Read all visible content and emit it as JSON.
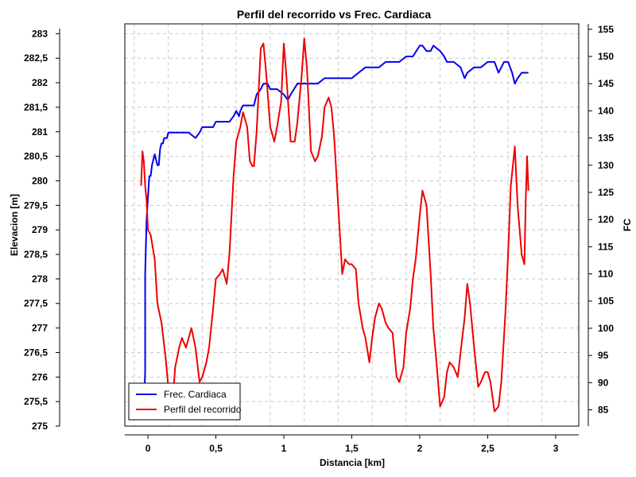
{
  "chart_data": {
    "type": "line",
    "title": "Perfil del recorrido vs Frec. Cardiaca",
    "xlabel": "Distancia [km]",
    "ylabel_left": "Elevacion [m]",
    "ylabel_right": "FC",
    "xlim": [
      -0.17,
      3.17
    ],
    "ylim_left": [
      275,
      283.2
    ],
    "ylim_right": [
      82,
      156
    ],
    "x_ticks": [
      "0",
      "0,5",
      "1",
      "1,5",
      "2",
      "2,5",
      "3"
    ],
    "x_tick_values": [
      0,
      0.5,
      1,
      1.5,
      2,
      2.5,
      3
    ],
    "y_left_ticks": [
      "275",
      "275,5",
      "276",
      "276,5",
      "277",
      "277,5",
      "278",
      "278,5",
      "279",
      "279,5",
      "280",
      "280,5",
      "281",
      "281,5",
      "282",
      "282,5",
      "283"
    ],
    "y_left_tick_values": [
      275,
      275.5,
      276,
      276.5,
      277,
      277.5,
      278,
      278.5,
      279,
      279.5,
      280,
      280.5,
      281,
      281.5,
      282,
      282.5,
      283
    ],
    "y_right_ticks": [
      "85",
      "90",
      "95",
      "100",
      "105",
      "110",
      "115",
      "120",
      "125",
      "130",
      "135",
      "140",
      "145",
      "150",
      "155"
    ],
    "y_right_tick_values": [
      85,
      90,
      95,
      100,
      105,
      110,
      115,
      120,
      125,
      130,
      135,
      140,
      145,
      150,
      155
    ],
    "grid": true,
    "legend_position": "bottom-left",
    "series": [
      {
        "name": "Frec. Cardiaca",
        "axis": "right",
        "color": "#0000ee",
        "x": [
          -0.03,
          -0.02,
          -0.02,
          -0.01,
          0.0,
          0.01,
          0.02,
          0.03,
          0.04,
          0.05,
          0.06,
          0.07,
          0.08,
          0.09,
          0.1,
          0.11,
          0.12,
          0.13,
          0.14,
          0.15,
          0.17,
          0.2,
          0.23,
          0.25,
          0.3,
          0.35,
          0.38,
          0.4,
          0.43,
          0.45,
          0.48,
          0.5,
          0.53,
          0.55,
          0.6,
          0.63,
          0.65,
          0.67,
          0.68,
          0.7,
          0.75,
          0.78,
          0.8,
          0.83,
          0.85,
          0.88,
          0.9,
          0.95,
          1.0,
          1.03,
          1.05,
          1.1,
          1.15,
          1.2,
          1.25,
          1.3,
          1.33,
          1.35,
          1.4,
          1.45,
          1.5,
          1.55,
          1.6,
          1.65,
          1.7,
          1.75,
          1.8,
          1.85,
          1.9,
          1.95,
          2.0,
          2.02,
          2.05,
          2.08,
          2.1,
          2.15,
          2.18,
          2.2,
          2.25,
          2.3,
          2.33,
          2.35,
          2.4,
          2.45,
          2.5,
          2.55,
          2.58,
          2.6,
          2.62,
          2.65,
          2.68,
          2.7,
          2.72,
          2.75,
          2.78,
          2.8
        ],
        "y": [
          85,
          92,
          110,
          120,
          124,
          128,
          128,
          130,
          131,
          132,
          131,
          130,
          130,
          133,
          134,
          134,
          135,
          135,
          135,
          136,
          136,
          136,
          136,
          136,
          136,
          135,
          136,
          137,
          137,
          137,
          137,
          138,
          138,
          138,
          138,
          139,
          140,
          139,
          140,
          141,
          141,
          141,
          143,
          144,
          145,
          145,
          144,
          144,
          143,
          142,
          143,
          145,
          145,
          145,
          145,
          146,
          146,
          146,
          146,
          146,
          146,
          147,
          148,
          148,
          148,
          149,
          149,
          149,
          150,
          150,
          152,
          152,
          151,
          151,
          152,
          151,
          150,
          149,
          149,
          148,
          146,
          147,
          148,
          148,
          149,
          149,
          147,
          148,
          149,
          149,
          147,
          145,
          146,
          147,
          147,
          147
        ]
      },
      {
        "name": "Perfil del recorrido",
        "axis": "left",
        "color": "#ee0000",
        "x": [
          -0.05,
          -0.04,
          -0.03,
          -0.02,
          -0.01,
          0.0,
          0.02,
          0.05,
          0.07,
          0.1,
          0.13,
          0.15,
          0.18,
          0.2,
          0.23,
          0.25,
          0.28,
          0.3,
          0.32,
          0.35,
          0.38,
          0.4,
          0.43,
          0.45,
          0.48,
          0.5,
          0.53,
          0.55,
          0.58,
          0.6,
          0.63,
          0.65,
          0.68,
          0.7,
          0.73,
          0.75,
          0.77,
          0.78,
          0.8,
          0.83,
          0.85,
          0.87,
          0.9,
          0.93,
          0.95,
          0.98,
          1.0,
          1.02,
          1.05,
          1.08,
          1.1,
          1.13,
          1.15,
          1.17,
          1.2,
          1.23,
          1.25,
          1.28,
          1.3,
          1.33,
          1.35,
          1.37,
          1.4,
          1.43,
          1.45,
          1.48,
          1.5,
          1.53,
          1.55,
          1.58,
          1.6,
          1.63,
          1.65,
          1.67,
          1.7,
          1.72,
          1.75,
          1.77,
          1.8,
          1.83,
          1.85,
          1.88,
          1.9,
          1.93,
          1.95,
          1.97,
          2.0,
          2.02,
          2.05,
          2.08,
          2.1,
          2.12,
          2.15,
          2.18,
          2.2,
          2.22,
          2.25,
          2.28,
          2.3,
          2.33,
          2.35,
          2.37,
          2.4,
          2.43,
          2.45,
          2.48,
          2.5,
          2.52,
          2.55,
          2.58,
          2.6,
          2.63,
          2.65,
          2.67,
          2.7,
          2.72,
          2.75,
          2.77,
          2.78,
          2.79,
          2.8
        ],
        "y": [
          279.9,
          280.6,
          280.4,
          279.9,
          279.6,
          279.0,
          278.9,
          278.4,
          277.5,
          277.1,
          276.4,
          275.8,
          275.4,
          276.2,
          276.6,
          276.8,
          276.6,
          276.8,
          277.0,
          276.6,
          275.9,
          276.0,
          276.3,
          276.6,
          277.4,
          278.0,
          278.1,
          278.2,
          277.9,
          278.5,
          280.1,
          280.8,
          281.1,
          281.4,
          281.1,
          280.4,
          280.3,
          280.3,
          281.0,
          282.7,
          282.8,
          282.2,
          281.1,
          280.8,
          281.1,
          281.6,
          282.8,
          282.1,
          280.8,
          280.8,
          281.2,
          282.1,
          282.9,
          282.3,
          280.6,
          280.4,
          280.5,
          280.9,
          281.5,
          281.7,
          281.5,
          280.9,
          279.5,
          278.1,
          278.4,
          278.3,
          278.3,
          278.2,
          277.5,
          277.0,
          276.8,
          276.3,
          276.8,
          277.2,
          277.5,
          277.4,
          277.1,
          277.0,
          276.9,
          276.0,
          275.9,
          276.2,
          276.9,
          277.4,
          278.0,
          278.4,
          279.3,
          279.8,
          279.5,
          278.1,
          277.0,
          276.4,
          275.4,
          275.6,
          276.1,
          276.3,
          276.2,
          276.0,
          276.5,
          277.2,
          277.9,
          277.5,
          276.6,
          275.8,
          275.9,
          276.1,
          276.1,
          275.9,
          275.3,
          275.4,
          275.9,
          277.3,
          278.5,
          279.9,
          280.7,
          279.5,
          278.5,
          278.3,
          279.6,
          280.5,
          279.8
        ]
      }
    ]
  }
}
